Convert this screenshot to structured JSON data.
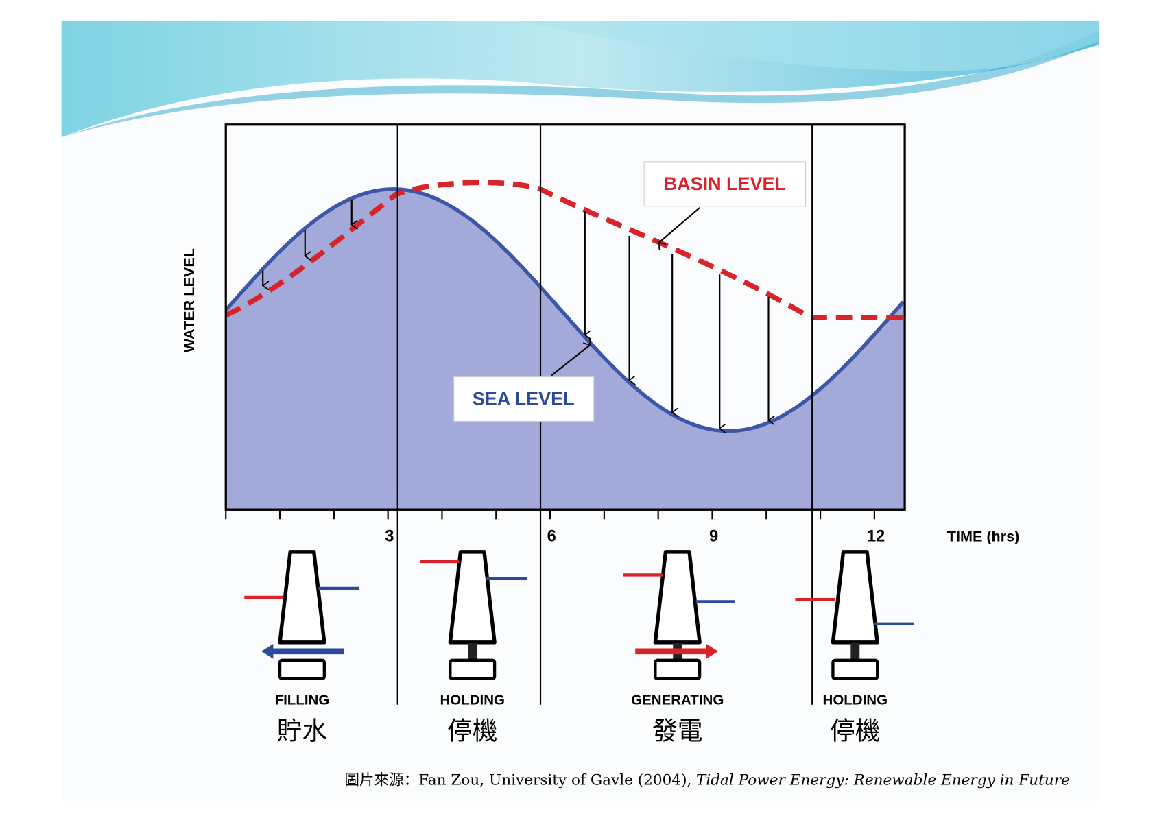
{
  "y_axis_label": "WATER LEVEL",
  "annotations": {
    "basin_level": "BASIN LEVEL",
    "sea_level": "SEA LEVEL"
  },
  "x_axis": {
    "ticks": [
      "3",
      "6",
      "9",
      "12"
    ],
    "label": "TIME (hrs)"
  },
  "phases": [
    {
      "label": "FILLING",
      "label_zh": "貯水"
    },
    {
      "label": "HOLDING",
      "label_zh": "停機"
    },
    {
      "label": "GENERATING",
      "label_zh": "發電"
    },
    {
      "label": "HOLDING",
      "label_zh": "停機"
    }
  ],
  "citation": {
    "prefix": "圖片來源：",
    "authors": "Fan Zou, University of Gavle (2004),",
    "title": "Tidal Power Energy: Renewable Energy in Future"
  }
}
